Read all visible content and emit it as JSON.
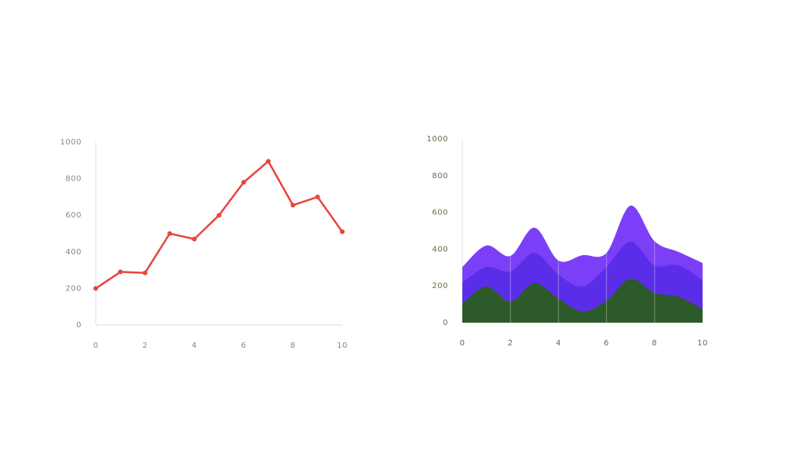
{
  "chart_data": [
    {
      "type": "line",
      "color": "#e8453c",
      "x": [
        0,
        1,
        2,
        3,
        4,
        5,
        6,
        7,
        8,
        9,
        10
      ],
      "values": [
        200,
        290,
        285,
        500,
        470,
        600,
        780,
        895,
        655,
        700,
        510
      ],
      "xlim": [
        0,
        10
      ],
      "ylim": [
        0,
        1000
      ],
      "xticks": [
        0,
        2,
        4,
        6,
        8,
        10
      ],
      "yticks": [
        0,
        200,
        400,
        600,
        800,
        1000
      ]
    },
    {
      "type": "stacked_area",
      "grid": "x",
      "x": [
        0,
        1,
        2,
        3,
        4,
        5,
        6,
        7,
        8,
        9,
        10
      ],
      "series": [
        {
          "color": "#2c5a2a",
          "values": [
            103,
            197,
            115,
            214,
            132,
            60,
            120,
            239,
            162,
            141,
            73
          ]
        },
        {
          "color": "#5a2ee8",
          "values": [
            115,
            106,
            163,
            166,
            129,
            137,
            183,
            201,
            150,
            171,
            158
          ]
        },
        {
          "color": "#7b3ff7",
          "values": [
            85,
            117,
            85,
            137,
            77,
            170,
            77,
            197,
            132,
            73,
            94
          ]
        }
      ],
      "xlim": [
        0,
        10
      ],
      "ylim": [
        0,
        1000
      ],
      "xticks": [
        0,
        2,
        4,
        6,
        8,
        10
      ],
      "yticks": [
        0,
        200,
        400,
        600,
        800,
        1000
      ]
    }
  ]
}
